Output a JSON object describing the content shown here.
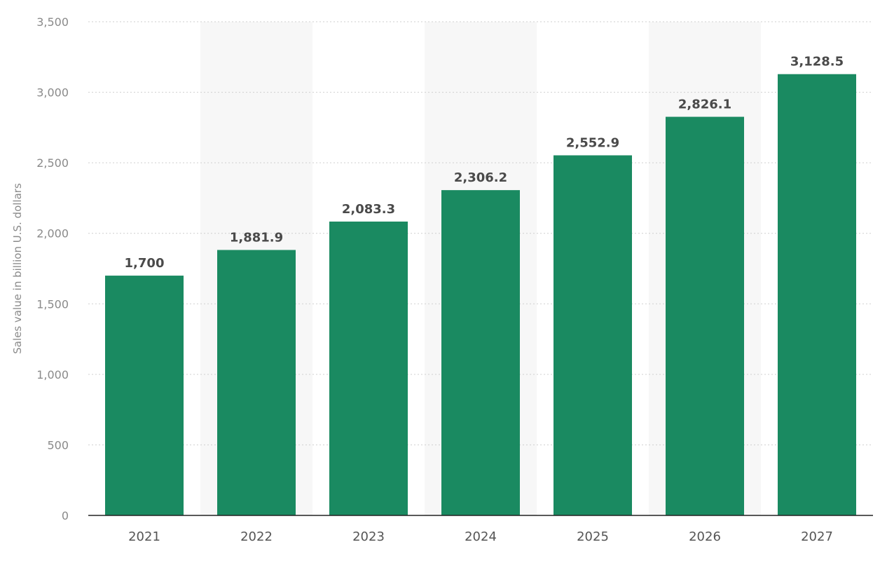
{
  "chart_data": {
    "type": "bar",
    "categories": [
      "2021",
      "2022",
      "2023",
      "2024",
      "2025",
      "2026",
      "2027"
    ],
    "values": [
      1700,
      1881.9,
      2083.3,
      2306.2,
      2552.9,
      2826.1,
      3128.5
    ],
    "value_labels": [
      "1,700",
      "1,881.9",
      "2,083.3",
      "2,306.2",
      "2,552.9",
      "2,826.1",
      "3,128.5"
    ],
    "title": "",
    "xlabel": "",
    "ylabel": "Sales value in billion U.S. dollars",
    "ylim": [
      0,
      3500
    ],
    "yticks": [
      0,
      500,
      1000,
      1500,
      2000,
      2500,
      3000,
      3500
    ],
    "ytick_labels": [
      "0",
      "500",
      "1,000",
      "1,500",
      "2,000",
      "2,500",
      "3,000",
      "3,500"
    ],
    "grid": true,
    "legend": "none",
    "colors": {
      "bar": "#1a8a61",
      "band": "#f7f7f7",
      "grid": "#cfcfcf",
      "axis": "#222222"
    }
  }
}
